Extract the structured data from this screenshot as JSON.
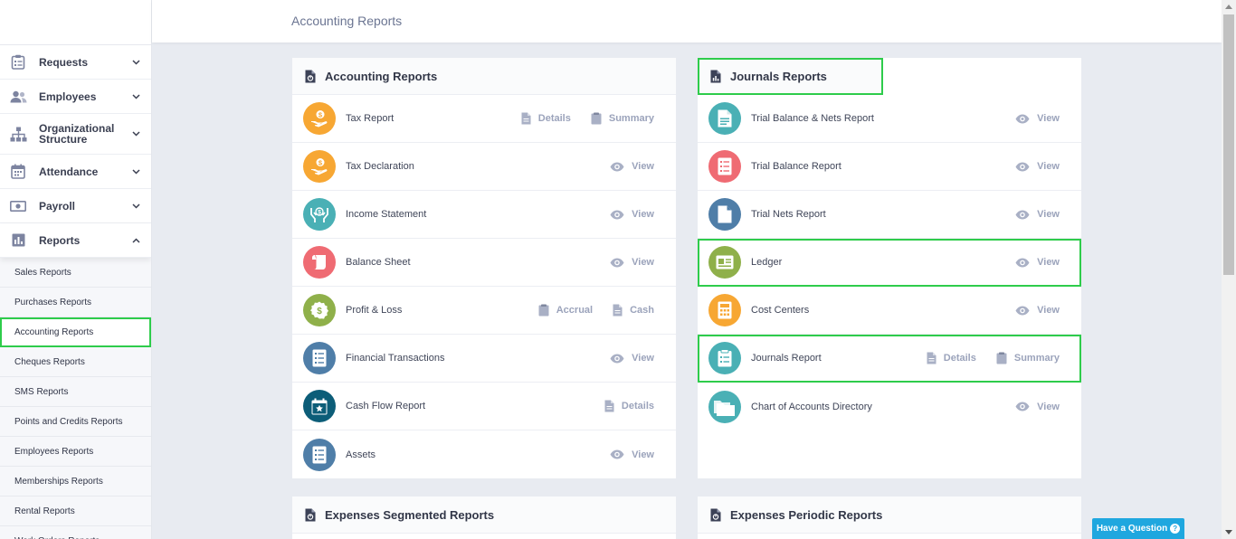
{
  "header": {
    "title": "Accounting Reports"
  },
  "sidebar": {
    "items": [
      {
        "label": "Requests",
        "icon": "clipboard-icon"
      },
      {
        "label": "Employees",
        "icon": "users-icon"
      },
      {
        "label": "Organizational Structure",
        "icon": "org-chart-icon"
      },
      {
        "label": "Attendance",
        "icon": "calendar-icon"
      },
      {
        "label": "Payroll",
        "icon": "money-icon"
      },
      {
        "label": "Reports",
        "icon": "bar-chart-icon"
      }
    ],
    "sub_items": [
      "Sales Reports",
      "Purchases Reports",
      "Accounting Reports",
      "Cheques Reports",
      "SMS Reports",
      "Points and Credits Reports",
      "Employees Reports",
      "Memberships Reports",
      "Rental Reports",
      "Work Orders Reports"
    ]
  },
  "accounting_card": {
    "title": "Accounting Reports",
    "rows": [
      {
        "label": "Tax Report",
        "color": "#f7a733",
        "icon": "dollar-hand-icon",
        "actions": [
          {
            "label": "Details",
            "icon": "document-icon"
          },
          {
            "label": "Summary",
            "icon": "clipboard-icon"
          }
        ]
      },
      {
        "label": "Tax Declaration",
        "color": "#f7a733",
        "icon": "dollar-hand-icon",
        "actions": [
          {
            "label": "View",
            "icon": "eye-icon"
          }
        ]
      },
      {
        "label": "Income Statement",
        "color": "#4ab0b5",
        "icon": "hands-dollar-icon",
        "actions": [
          {
            "label": "View",
            "icon": "eye-icon"
          }
        ]
      },
      {
        "label": "Balance Sheet",
        "color": "#ef6b73",
        "icon": "scroll-icon",
        "actions": [
          {
            "label": "View",
            "icon": "eye-icon"
          }
        ]
      },
      {
        "label": "Profit & Loss",
        "color": "#8fb04a",
        "icon": "coin-badge-icon",
        "actions": [
          {
            "label": "Accrual",
            "icon": "clipboard-icon"
          },
          {
            "label": "Cash",
            "icon": "document-icon"
          }
        ]
      },
      {
        "label": "Financial Transactions",
        "color": "#4f7ea8",
        "icon": "list-doc-icon",
        "actions": [
          {
            "label": "View",
            "icon": "eye-icon"
          }
        ]
      },
      {
        "label": "Cash Flow Report",
        "color": "#0c5d78",
        "icon": "calendar-star-icon",
        "actions": [
          {
            "label": "Details",
            "icon": "document-icon"
          }
        ]
      },
      {
        "label": "Assets",
        "color": "#4f7ea8",
        "icon": "list-doc-icon",
        "actions": [
          {
            "label": "View",
            "icon": "eye-icon"
          }
        ]
      }
    ]
  },
  "journals_card": {
    "title": "Journals Reports",
    "rows": [
      {
        "label": "Trial Balance & Nets Report",
        "color": "#4ab0b5",
        "icon": "document-lines-icon",
        "actions": [
          {
            "label": "View",
            "icon": "eye-icon"
          }
        ]
      },
      {
        "label": "Trial Balance Report",
        "color": "#ef6b73",
        "icon": "list-doc-icon",
        "actions": [
          {
            "label": "View",
            "icon": "eye-icon"
          }
        ]
      },
      {
        "label": "Trial Nets Report",
        "color": "#4f7ea8",
        "icon": "document-icon",
        "actions": [
          {
            "label": "View",
            "icon": "eye-icon"
          }
        ]
      },
      {
        "label": "Ledger",
        "color": "#8fb04a",
        "icon": "id-card-icon",
        "actions": [
          {
            "label": "View",
            "icon": "eye-icon"
          }
        ]
      },
      {
        "label": "Cost Centers",
        "color": "#f7a733",
        "icon": "calculator-icon",
        "actions": [
          {
            "label": "View",
            "icon": "eye-icon"
          }
        ]
      },
      {
        "label": "Journals Report",
        "color": "#4ab0b5",
        "icon": "clipboard-list-icon",
        "actions": [
          {
            "label": "Details",
            "icon": "document-icon"
          },
          {
            "label": "Summary",
            "icon": "clipboard-icon"
          }
        ]
      },
      {
        "label": "Chart of Accounts Directory",
        "color": "#4ab0b5",
        "icon": "folders-icon",
        "actions": [
          {
            "label": "View",
            "icon": "eye-icon"
          }
        ]
      }
    ]
  },
  "expenses_segmented": {
    "title": "Expenses Segmented Reports"
  },
  "expenses_periodic": {
    "title": "Expenses Periodic Reports"
  },
  "help_button": {
    "label": "Have a Question",
    "glyph": "?"
  }
}
